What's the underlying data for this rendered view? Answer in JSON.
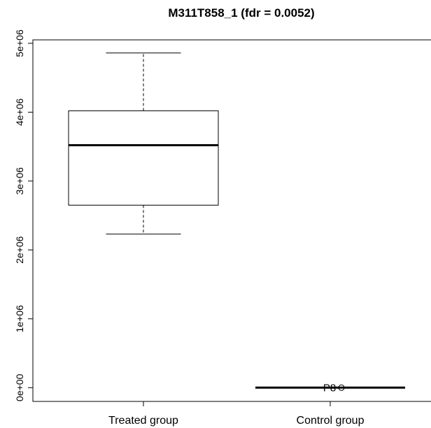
{
  "chart_data": {
    "type": "box",
    "title": "M311T858_1 (fdr = 0.0052)",
    "xlabel": "",
    "ylabel": "",
    "categories": [
      "Treated group",
      "Control group"
    ],
    "y_ticks": [
      "0e+00",
      "1e+06",
      "2e+06",
      "3e+06",
      "4e+06",
      "5e+06"
    ],
    "y_tick_values": [
      0,
      1000000,
      2000000,
      3000000,
      4000000,
      5000000
    ],
    "ylim": [
      -200000,
      5050000
    ],
    "boxes": [
      {
        "name": "Treated group",
        "min": 2230000,
        "q1": 2650000,
        "median": 3520000,
        "q3": 4020000,
        "max": 4860000,
        "outliers": []
      },
      {
        "name": "Control group",
        "min": 0,
        "q1": 0,
        "median": 0,
        "q3": 0,
        "max": 0,
        "outliers": [
          {
            "value": 0,
            "label": "P8"
          }
        ]
      }
    ],
    "grid": false,
    "legend": "none"
  }
}
